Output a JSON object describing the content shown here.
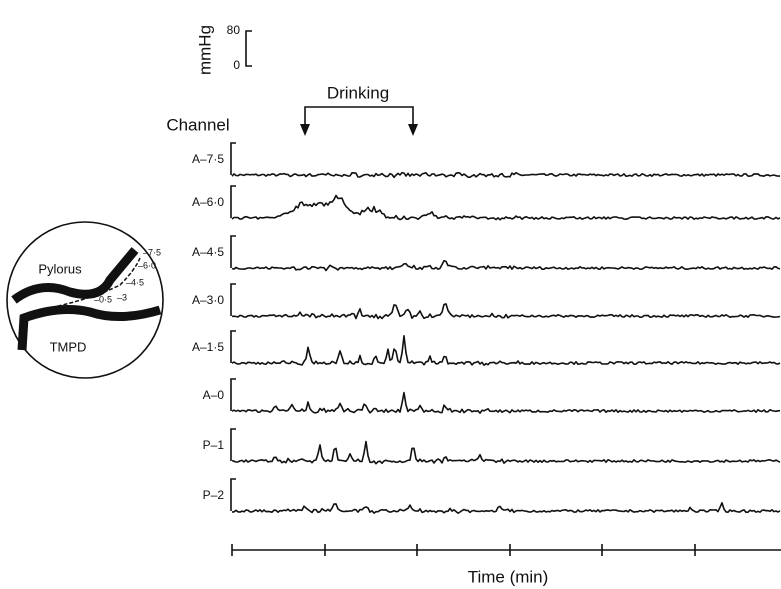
{
  "scale": {
    "unit": "mmHg",
    "top": "80",
    "bottom": "0"
  },
  "event": "Drinking",
  "channel_header": "Channel",
  "channels": [
    "A–7·5",
    "A–6·0",
    "A–4·5",
    "A–3·0",
    "A–1·5",
    "A–0",
    "P–1",
    "P–2"
  ],
  "inset": {
    "labels": [
      "Pylorus",
      "TMPD"
    ],
    "positions": [
      "–7·5",
      "–6·0",
      "–4·5",
      "–3",
      "–0·5"
    ]
  },
  "x_axis": {
    "label": "Time (min)"
  }
}
